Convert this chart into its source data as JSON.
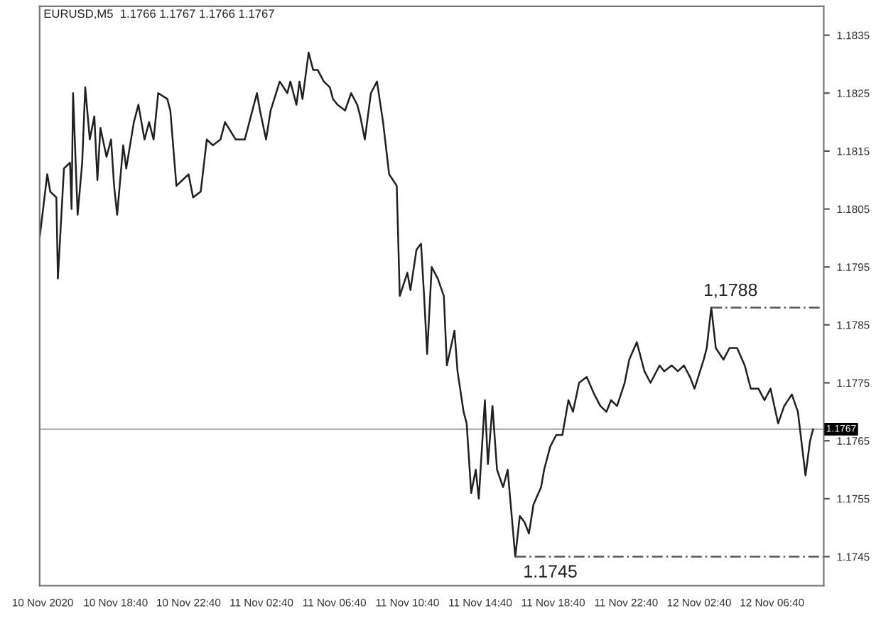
{
  "chart_data": {
    "type": "line",
    "title": "EURUSD,M5  1.1766 1.1767 1.1766 1.1767",
    "xlim": [
      "2020-11-10T14:30",
      "2020-11-12T09:30"
    ],
    "ylim": [
      1.174,
      1.184
    ],
    "xticks": [
      {
        "value": "2020-11-10T14:40",
        "label": "10 Nov 2020"
      },
      {
        "value": "2020-11-10T18:40",
        "label": "10 Nov 18:40"
      },
      {
        "value": "2020-11-10T22:40",
        "label": "10 Nov 22:40"
      },
      {
        "value": "2020-11-11T02:40",
        "label": "11 Nov 02:40"
      },
      {
        "value": "2020-11-11T06:40",
        "label": "11 Nov 06:40"
      },
      {
        "value": "2020-11-11T10:40",
        "label": "11 Nov 10:40"
      },
      {
        "value": "2020-11-11T14:40",
        "label": "11 Nov 14:40"
      },
      {
        "value": "2020-11-11T18:40",
        "label": "11 Nov 18:40"
      },
      {
        "value": "2020-11-11T22:40",
        "label": "11 Nov 22:40"
      },
      {
        "value": "2020-11-12T02:40",
        "label": "12 Nov 02:40"
      },
      {
        "value": "2020-11-12T06:40",
        "label": "12 Nov 06:40"
      }
    ],
    "yticks": [
      1.1745,
      1.1755,
      1.1765,
      1.1775,
      1.1785,
      1.1795,
      1.1805,
      1.1815,
      1.1825,
      1.1835
    ],
    "series": [
      {
        "color": "#202020",
        "line_style": "solid",
        "x": [
          "2020-11-10T14:30",
          "2020-11-10T14:55",
          "2020-11-10T15:05",
          "2020-11-10T15:25",
          "2020-11-10T15:30",
          "2020-11-10T15:50",
          "2020-11-10T16:10",
          "2020-11-10T16:15",
          "2020-11-10T16:20",
          "2020-11-10T16:35",
          "2020-11-10T16:50",
          "2020-11-10T17:00",
          "2020-11-10T17:15",
          "2020-11-10T17:30",
          "2020-11-10T17:40",
          "2020-11-10T17:50",
          "2020-11-10T18:10",
          "2020-11-10T18:25",
          "2020-11-10T18:35",
          "2020-11-10T18:45",
          "2020-11-10T19:05",
          "2020-11-10T19:15",
          "2020-11-10T19:40",
          "2020-11-10T19:55",
          "2020-11-10T20:15",
          "2020-11-10T20:30",
          "2020-11-10T20:45",
          "2020-11-10T21:00",
          "2020-11-10T21:30",
          "2020-11-10T21:40",
          "2020-11-10T22:00",
          "2020-11-10T22:20",
          "2020-11-10T22:40",
          "2020-11-10T22:55",
          "2020-11-10T23:20",
          "2020-11-10T23:40",
          "2020-11-11T00:00",
          "2020-11-11T00:25",
          "2020-11-11T00:40",
          "2020-11-11T01:15",
          "2020-11-11T01:45",
          "2020-11-11T02:00",
          "2020-11-11T02:25",
          "2020-11-11T02:35",
          "2020-11-11T02:55",
          "2020-11-11T03:10",
          "2020-11-11T03:40",
          "2020-11-11T04:05",
          "2020-11-11T04:15",
          "2020-11-11T04:35",
          "2020-11-11T04:45",
          "2020-11-11T04:55",
          "2020-11-11T05:15",
          "2020-11-11T05:30",
          "2020-11-11T05:45",
          "2020-11-11T06:05",
          "2020-11-11T06:25",
          "2020-11-11T06:35",
          "2020-11-11T06:50",
          "2020-11-11T07:15",
          "2020-11-11T07:35",
          "2020-11-11T07:55",
          "2020-11-11T08:05",
          "2020-11-11T08:20",
          "2020-11-11T08:40",
          "2020-11-11T09:00",
          "2020-11-11T09:20",
          "2020-11-11T09:40",
          "2020-11-11T10:05",
          "2020-11-11T10:15",
          "2020-11-11T10:40",
          "2020-11-11T10:50",
          "2020-11-11T11:10",
          "2020-11-11T11:25",
          "2020-11-11T11:35",
          "2020-11-11T11:45",
          "2020-11-11T12:00",
          "2020-11-11T12:20",
          "2020-11-11T12:40",
          "2020-11-11T12:50",
          "2020-11-11T13:15",
          "2020-11-11T13:25",
          "2020-11-11T13:45",
          "2020-11-11T13:55",
          "2020-11-11T14:10",
          "2020-11-11T14:25",
          "2020-11-11T14:35",
          "2020-11-11T14:55",
          "2020-11-11T15:05",
          "2020-11-11T15:20",
          "2020-11-11T15:35",
          "2020-11-11T15:55",
          "2020-11-11T16:10",
          "2020-11-11T16:20",
          "2020-11-11T16:35",
          "2020-11-11T16:50",
          "2020-11-11T17:05",
          "2020-11-11T17:20",
          "2020-11-11T17:35",
          "2020-11-11T18:00",
          "2020-11-11T18:10",
          "2020-11-11T18:30",
          "2020-11-11T18:50",
          "2020-11-11T19:10",
          "2020-11-11T19:30",
          "2020-11-11T19:45",
          "2020-11-11T20:05",
          "2020-11-11T20:30",
          "2020-11-11T20:55",
          "2020-11-11T21:15",
          "2020-11-11T21:35",
          "2020-11-11T21:50",
          "2020-11-11T22:10",
          "2020-11-11T22:35",
          "2020-11-11T22:50",
          "2020-11-11T23:15",
          "2020-11-11T23:40",
          "2020-11-12T00:00",
          "2020-11-12T00:30",
          "2020-11-12T00:45",
          "2020-11-12T01:10",
          "2020-11-12T01:30",
          "2020-11-12T01:50",
          "2020-11-12T02:10",
          "2020-11-12T02:25",
          "2020-11-12T02:55",
          "2020-11-12T03:05",
          "2020-11-12T03:20",
          "2020-11-12T03:35",
          "2020-11-12T04:00",
          "2020-11-12T04:20",
          "2020-11-12T04:45",
          "2020-11-12T05:10",
          "2020-11-12T05:30",
          "2020-11-12T05:55",
          "2020-11-12T06:15",
          "2020-11-12T06:35",
          "2020-11-12T07:00",
          "2020-11-12T07:20",
          "2020-11-12T07:45",
          "2020-11-12T08:05",
          "2020-11-12T08:30",
          "2020-11-12T08:45",
          "2020-11-12T08:55"
        ],
        "values": [
          1.18,
          1.1811,
          1.1808,
          1.1807,
          1.1793,
          1.1812,
          1.1813,
          1.1805,
          1.1825,
          1.1804,
          1.1813,
          1.1826,
          1.1817,
          1.1821,
          1.181,
          1.1819,
          1.1814,
          1.1817,
          1.1809,
          1.1804,
          1.1816,
          1.1812,
          1.182,
          1.1823,
          1.1817,
          1.182,
          1.1817,
          1.1825,
          1.1824,
          1.1822,
          1.1809,
          1.181,
          1.1811,
          1.1807,
          1.1808,
          1.1817,
          1.1816,
          1.1817,
          1.182,
          1.1817,
          1.1817,
          1.182,
          1.1825,
          1.1822,
          1.1817,
          1.1822,
          1.1827,
          1.1825,
          1.1827,
          1.1823,
          1.1827,
          1.1824,
          1.1832,
          1.1829,
          1.1829,
          1.1827,
          1.1826,
          1.1824,
          1.1823,
          1.1822,
          1.1825,
          1.1823,
          1.1821,
          1.1817,
          1.1825,
          1.1827,
          1.182,
          1.1811,
          1.1809,
          1.179,
          1.1794,
          1.1791,
          1.1798,
          1.1799,
          1.179,
          1.178,
          1.1795,
          1.1793,
          1.179,
          1.1778,
          1.1784,
          1.1777,
          1.177,
          1.1768,
          1.1756,
          1.176,
          1.1755,
          1.1772,
          1.1761,
          1.1771,
          1.176,
          1.1757,
          1.176,
          1.1754,
          1.1745,
          1.1752,
          1.1751,
          1.1749,
          1.1754,
          1.1757,
          1.176,
          1.1764,
          1.1766,
          1.1766,
          1.1772,
          1.177,
          1.1775,
          1.1776,
          1.1773,
          1.1771,
          1.177,
          1.1772,
          1.1771,
          1.1775,
          1.1779,
          1.1782,
          1.1777,
          1.1775,
          1.1778,
          1.1777,
          1.1778,
          1.1777,
          1.1778,
          1.1776,
          1.1774,
          1.1779,
          1.1781,
          1.1788,
          1.1781,
          1.1779,
          1.1781,
          1.1781,
          1.1778,
          1.1774,
          1.1774,
          1.1772,
          1.1774,
          1.1768,
          1.1771,
          1.1773,
          1.177,
          1.1759,
          1.1765,
          1.1767
        ]
      },
      {
        "color": "#555555",
        "line_style": "dashed",
        "x": [
          "2020-11-12T03:20",
          "2020-11-12T09:30"
        ],
        "values": [
          1.1788,
          1.1788
        ]
      },
      {
        "color": "#555555",
        "line_style": "dashed",
        "x": [
          "2020-11-11T16:35",
          "2020-11-12T09:30"
        ],
        "values": [
          1.1745,
          1.1745
        ]
      }
    ],
    "ref_lines": [
      {
        "axis": "y",
        "value": 1.1767,
        "label": "1.1767",
        "color": "#b0b0b0"
      }
    ],
    "annotations": [
      {
        "text": "1,1788",
        "x": "2020-11-12T03:20",
        "y": 1.1788
      },
      {
        "text": "1.1745",
        "x": "2020-11-11T16:35",
        "y": 1.1745
      }
    ],
    "grid": false,
    "legend": false
  }
}
